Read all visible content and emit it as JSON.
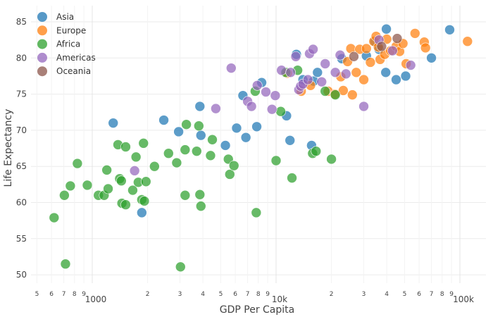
{
  "chart_data": {
    "type": "scatter",
    "title": "",
    "xlabel": "GDP Per Capita",
    "ylabel": "Life Expectancy",
    "xscale": "log",
    "xlim": [
      430,
      120000
    ],
    "ylim": [
      49,
      86.5
    ],
    "grid": true,
    "legend_position": "top-left",
    "y_ticks": [
      50,
      55,
      60,
      65,
      70,
      75,
      80,
      85
    ],
    "x_major_ticks": [
      {
        "value": 1000,
        "label": "1000"
      },
      {
        "value": 10000,
        "label": "10k"
      },
      {
        "value": 100000,
        "label": "100k"
      }
    ],
    "x_minor_ticks": [
      {
        "value": 500,
        "label": "5"
      },
      {
        "value": 600,
        "label": "6"
      },
      {
        "value": 700,
        "label": "7"
      },
      {
        "value": 800,
        "label": "8"
      },
      {
        "value": 900,
        "label": "9"
      },
      {
        "value": 2000,
        "label": "2"
      },
      {
        "value": 3000,
        "label": "3"
      },
      {
        "value": 4000,
        "label": "4"
      },
      {
        "value": 5000,
        "label": "5"
      },
      {
        "value": 6000,
        "label": "6"
      },
      {
        "value": 7000,
        "label": "7"
      },
      {
        "value": 8000,
        "label": "8"
      },
      {
        "value": 9000,
        "label": "9"
      },
      {
        "value": 20000,
        "label": "2"
      },
      {
        "value": 30000,
        "label": "3"
      },
      {
        "value": 40000,
        "label": "4"
      },
      {
        "value": 50000,
        "label": "5"
      },
      {
        "value": 60000,
        "label": "6"
      },
      {
        "value": 70000,
        "label": "7"
      },
      {
        "value": 80000,
        "label": "8"
      },
      {
        "value": 90000,
        "label": "9"
      }
    ],
    "series": [
      {
        "name": "Asia",
        "color": "#1f77b4",
        "points": [
          [
            1300,
            71.0
          ],
          [
            1860,
            58.6
          ],
          [
            2450,
            71.4
          ],
          [
            2950,
            69.8
          ],
          [
            3850,
            73.3
          ],
          [
            3900,
            69.3
          ],
          [
            5300,
            67.9
          ],
          [
            6100,
            70.3
          ],
          [
            6600,
            74.8
          ],
          [
            6850,
            69.0
          ],
          [
            7850,
            70.5
          ],
          [
            8350,
            76.6
          ],
          [
            11400,
            72.0
          ],
          [
            11900,
            68.6
          ],
          [
            12900,
            80.5
          ],
          [
            14000,
            77.0
          ],
          [
            15600,
            67.9
          ],
          [
            16000,
            76.8
          ],
          [
            16800,
            78.0
          ],
          [
            22800,
            79.9
          ],
          [
            31000,
            80.3
          ],
          [
            34400,
            82.3
          ],
          [
            36300,
            81.2
          ],
          [
            39500,
            78.0
          ],
          [
            39800,
            84.0
          ],
          [
            45000,
            77.0
          ],
          [
            50700,
            77.5
          ],
          [
            70000,
            80.0
          ],
          [
            88000,
            83.9
          ]
        ]
      },
      {
        "name": "Europe",
        "color": "#ff7f0e",
        "points": [
          [
            11500,
            77.9
          ],
          [
            13700,
            75.4
          ],
          [
            15400,
            76.2
          ],
          [
            19200,
            75.4
          ],
          [
            20900,
            75.0
          ],
          [
            22500,
            77.4
          ],
          [
            23200,
            75.5
          ],
          [
            24500,
            79.5
          ],
          [
            25500,
            81.3
          ],
          [
            26000,
            74.9
          ],
          [
            27300,
            78.0
          ],
          [
            28500,
            81.2
          ],
          [
            30000,
            77.0
          ],
          [
            31000,
            81.3
          ],
          [
            32600,
            79.4
          ],
          [
            34000,
            82.3
          ],
          [
            35000,
            83.0
          ],
          [
            36000,
            81.5
          ],
          [
            36800,
            79.8
          ],
          [
            39000,
            80.5
          ],
          [
            40000,
            82.6
          ],
          [
            42000,
            81.0
          ],
          [
            45000,
            81.6
          ],
          [
            47000,
            80.9
          ],
          [
            49000,
            82.0
          ],
          [
            51000,
            79.2
          ],
          [
            57000,
            83.4
          ],
          [
            64000,
            82.2
          ],
          [
            65000,
            81.4
          ],
          [
            110000,
            82.3
          ]
        ]
      },
      {
        "name": "Africa",
        "color": "#2ca02c",
        "points": [
          [
            620,
            57.9
          ],
          [
            705,
            61.0
          ],
          [
            715,
            51.5
          ],
          [
            760,
            62.3
          ],
          [
            830,
            65.4
          ],
          [
            940,
            62.4
          ],
          [
            1080,
            61.0
          ],
          [
            1160,
            61.0
          ],
          [
            1200,
            64.5
          ],
          [
            1220,
            61.9
          ],
          [
            1380,
            68.0
          ],
          [
            1410,
            63.3
          ],
          [
            1440,
            63.0
          ],
          [
            1450,
            59.9
          ],
          [
            1520,
            59.7
          ],
          [
            1520,
            67.7
          ],
          [
            1660,
            61.7
          ],
          [
            1730,
            66.3
          ],
          [
            1780,
            62.8
          ],
          [
            1860,
            60.4
          ],
          [
            1900,
            68.2
          ],
          [
            1920,
            60.2
          ],
          [
            1960,
            62.9
          ],
          [
            2180,
            65.0
          ],
          [
            2600,
            66.8
          ],
          [
            2880,
            65.5
          ],
          [
            3020,
            51.1
          ],
          [
            3200,
            61.0
          ],
          [
            3200,
            67.3
          ],
          [
            3250,
            70.8
          ],
          [
            3700,
            67.1
          ],
          [
            3800,
            70.6
          ],
          [
            3850,
            61.1
          ],
          [
            3900,
            59.5
          ],
          [
            4400,
            66.5
          ],
          [
            4500,
            68.7
          ],
          [
            5500,
            66.0
          ],
          [
            5600,
            63.9
          ],
          [
            5900,
            65.1
          ],
          [
            7700,
            75.4
          ],
          [
            7800,
            58.6
          ],
          [
            10000,
            65.8
          ],
          [
            10600,
            72.6
          ],
          [
            11300,
            78.0
          ],
          [
            12200,
            63.4
          ],
          [
            13100,
            78.3
          ],
          [
            15800,
            66.8
          ],
          [
            16500,
            67.1
          ],
          [
            18500,
            75.4
          ],
          [
            20000,
            66.0
          ],
          [
            21000,
            74.9
          ]
        ]
      },
      {
        "name": "Americas",
        "color": "#9467bd",
        "points": [
          [
            1700,
            64.4
          ],
          [
            4700,
            73.0
          ],
          [
            5700,
            78.6
          ],
          [
            7000,
            74.0
          ],
          [
            7350,
            73.3
          ],
          [
            7900,
            76.2
          ],
          [
            8800,
            75.3
          ],
          [
            9500,
            72.9
          ],
          [
            9900,
            74.8
          ],
          [
            10700,
            78.3
          ],
          [
            12000,
            78.0
          ],
          [
            12800,
            80.2
          ],
          [
            13300,
            75.6
          ],
          [
            13600,
            76.1
          ],
          [
            14000,
            76.4
          ],
          [
            14900,
            77.0
          ],
          [
            15200,
            80.6
          ],
          [
            15900,
            81.2
          ],
          [
            17700,
            76.7
          ],
          [
            18500,
            79.2
          ],
          [
            21000,
            78.0
          ],
          [
            22300,
            80.4
          ],
          [
            24000,
            77.8
          ],
          [
            30000,
            73.3
          ],
          [
            36300,
            82.5
          ],
          [
            43000,
            81.0
          ],
          [
            54000,
            79.0
          ]
        ]
      },
      {
        "name": "Oceania",
        "color": "#8c564b",
        "points": [
          [
            26500,
            80.2
          ],
          [
            37500,
            81.6
          ],
          [
            45600,
            82.7
          ]
        ]
      }
    ]
  }
}
